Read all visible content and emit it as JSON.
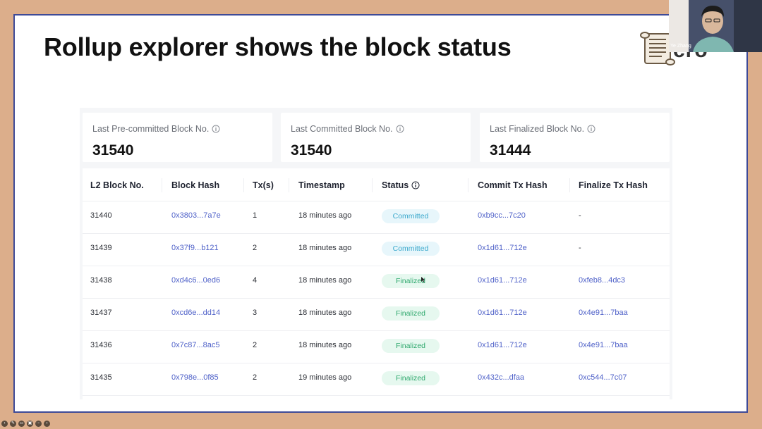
{
  "slide": {
    "title": "Rollup explorer shows the block status",
    "brand_fragment": "cro"
  },
  "presenter": {
    "name": "Ye Zhang"
  },
  "cards": [
    {
      "label": "Last Pre-committed Block No.",
      "value": "31540",
      "icon": "info-icon"
    },
    {
      "label": "Last Committed Block No.",
      "value": "31540",
      "icon": "info-icon"
    },
    {
      "label": "Last Finalized Block No.",
      "value": "31444",
      "icon": "info-icon"
    }
  ],
  "table": {
    "headers": {
      "block_no": "L2 Block No.",
      "block_hash": "Block Hash",
      "txs": "Tx(s)",
      "timestamp": "Timestamp",
      "status": "Status",
      "commit_tx": "Commit Tx Hash",
      "finalize_tx": "Finalize Tx Hash"
    },
    "rows": [
      {
        "block_no": "31440",
        "block_hash": "0x3803...7a7e",
        "txs": "1",
        "timestamp": "18 minutes ago",
        "status": "Committed",
        "commit_tx": "0xb9cc...7c20",
        "finalize_tx": "-"
      },
      {
        "block_no": "31439",
        "block_hash": "0x37f9...b121",
        "txs": "2",
        "timestamp": "18 minutes ago",
        "status": "Committed",
        "commit_tx": "0x1d61...712e",
        "finalize_tx": "-"
      },
      {
        "block_no": "31438",
        "block_hash": "0xd4c6...0ed6",
        "txs": "4",
        "timestamp": "18 minutes ago",
        "status": "Finalized",
        "commit_tx": "0x1d61...712e",
        "finalize_tx": "0xfeb8...4dc3"
      },
      {
        "block_no": "31437",
        "block_hash": "0xcd6e...dd14",
        "txs": "3",
        "timestamp": "18 minutes ago",
        "status": "Finalized",
        "commit_tx": "0x1d61...712e",
        "finalize_tx": "0x4e91...7baa"
      },
      {
        "block_no": "31436",
        "block_hash": "0x7c87...8ac5",
        "txs": "2",
        "timestamp": "18 minutes ago",
        "status": "Finalized",
        "commit_tx": "0x1d61...712e",
        "finalize_tx": "0x4e91...7baa"
      },
      {
        "block_no": "31435",
        "block_hash": "0x798e...0f85",
        "txs": "2",
        "timestamp": "19 minutes ago",
        "status": "Finalized",
        "commit_tx": "0x432c...dfaa",
        "finalize_tx": "0xc544...7c07"
      }
    ]
  },
  "colors": {
    "link": "#5163c9",
    "committed_bg": "#e7f6fb",
    "committed_text": "#3aa8cc",
    "finalized_bg": "#e6f8ef",
    "finalized_text": "#2ea86d",
    "slide_border": "#3e4a97",
    "backdrop": "#dcae8b"
  },
  "toolbar": {
    "icons": [
      "back-icon",
      "pen-icon",
      "captions-icon",
      "screen-icon",
      "more-icon",
      "next-icon"
    ]
  }
}
